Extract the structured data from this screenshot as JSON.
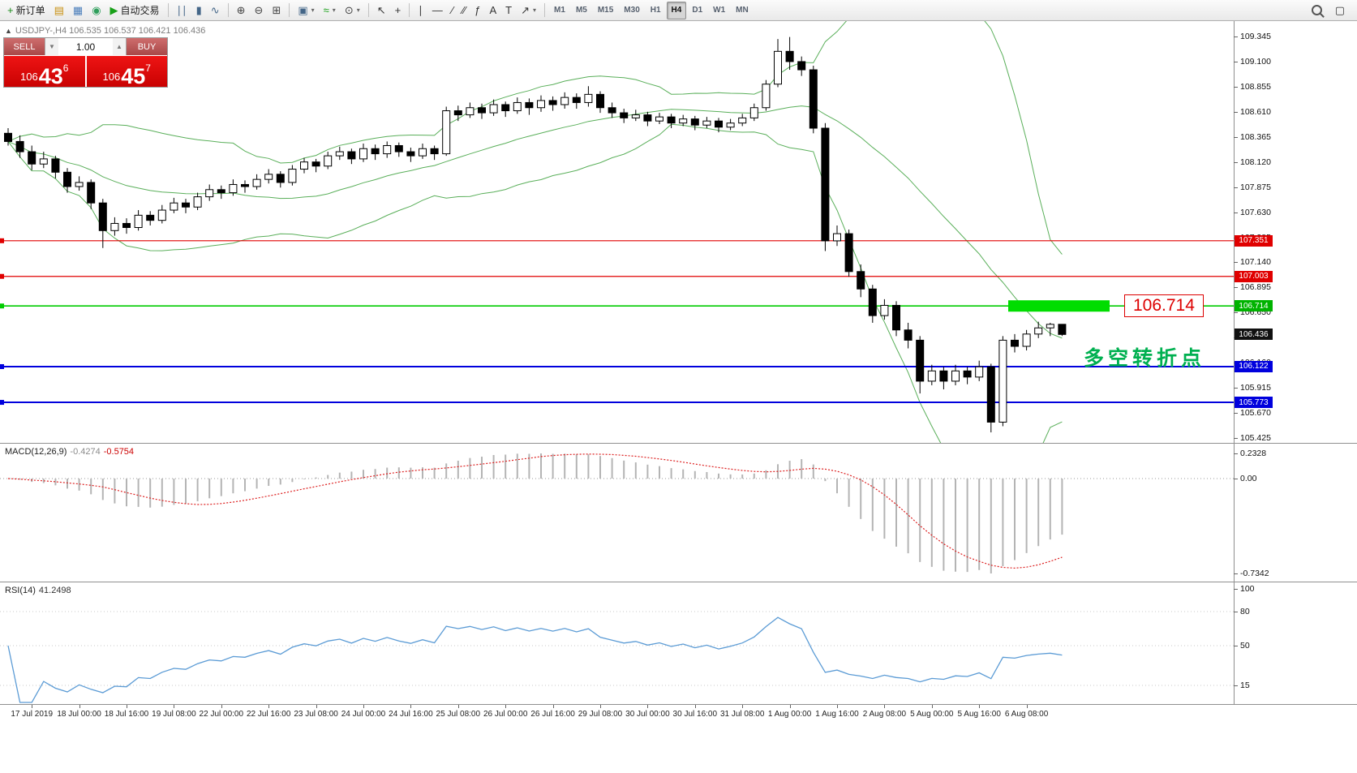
{
  "toolbar": {
    "groups": [
      {
        "items": [
          {
            "name": "new-order",
            "glyph": "+",
            "glyph_color": "#1a8a1a",
            "label": "新订单"
          },
          {
            "name": "profiles",
            "glyph": "▤",
            "glyph_color": "#c89010"
          },
          {
            "name": "market-watch",
            "glyph": "▦",
            "glyph_color": "#4a7ebb"
          },
          {
            "name": "navigator",
            "glyph": "◉",
            "glyph_color": "#2e9e5b"
          },
          {
            "name": "autotrading",
            "glyph": "▶",
            "glyph_color": "#18a018",
            "label": "自动交易"
          }
        ]
      },
      {
        "items": [
          {
            "name": "bar-chart",
            "glyph": "∣∣",
            "glyph_color": "#446688"
          },
          {
            "name": "candlestick-chart",
            "glyph": "▮",
            "glyph_color": "#446688"
          },
          {
            "name": "line-chart",
            "glyph": "∿",
            "glyph_color": "#446688"
          }
        ]
      },
      {
        "items": [
          {
            "name": "zoom-in",
            "glyph": "⊕",
            "glyph_color": "#444444"
          },
          {
            "name": "zoom-out",
            "glyph": "⊖",
            "glyph_color": "#444444"
          },
          {
            "name": "tile-windows",
            "glyph": "⊞",
            "glyph_color": "#444444"
          }
        ]
      },
      {
        "items": [
          {
            "name": "templates",
            "glyph": "▣",
            "glyph_color": "#446688",
            "caret": true
          },
          {
            "name": "indicators",
            "glyph": "≈",
            "glyph_color": "#18a018",
            "caret": true
          },
          {
            "name": "periods",
            "glyph": "⊙",
            "glyph_color": "#444444",
            "caret": true
          }
        ]
      },
      {
        "items": [
          {
            "name": "cursor",
            "glyph": "↖",
            "glyph_color": "#333333"
          },
          {
            "name": "crosshair",
            "glyph": "+",
            "glyph_color": "#333333"
          }
        ]
      },
      {
        "items": [
          {
            "name": "vertical-line",
            "glyph": "∣",
            "glyph_color": "#333333"
          },
          {
            "name": "horizontal-line",
            "glyph": "—",
            "glyph_color": "#333333"
          },
          {
            "name": "trendline",
            "glyph": "∕",
            "glyph_color": "#333333"
          },
          {
            "name": "equidistant-channel",
            "glyph": "∕∕",
            "glyph_color": "#333333"
          },
          {
            "name": "fibonacci",
            "glyph": "ƒ",
            "glyph_color": "#333333"
          },
          {
            "name": "text",
            "glyph": "A",
            "glyph_color": "#333333"
          },
          {
            "name": "text-label",
            "glyph": "T",
            "glyph_color": "#333333"
          },
          {
            "name": "arrows",
            "glyph": "↗",
            "glyph_color": "#333333",
            "caret": true
          }
        ]
      }
    ],
    "timeframes": [
      "M1",
      "M5",
      "M15",
      "M30",
      "H1",
      "H4",
      "D1",
      "W1",
      "MN"
    ],
    "active_timeframe": "H4",
    "right_items": [
      {
        "name": "search",
        "glyph": "css-magnifier"
      },
      {
        "name": "window-layout",
        "glyph": "▢"
      }
    ]
  },
  "chart_header": {
    "collapse_icon": "▲",
    "text": "USDJPY-,H4 106.535 106.537 106.421 106.436"
  },
  "one_click": {
    "sell_label": "SELL",
    "buy_label": "BUY",
    "volume": "1.00",
    "dec_icon": "▼",
    "inc_icon": "▲",
    "sell_price": {
      "prefix": "106",
      "big": "43",
      "sup": "6"
    },
    "buy_price": {
      "prefix": "106",
      "big": "45",
      "sup": "7"
    }
  },
  "main_overlay": {
    "level_label": "106.714",
    "turning_point_label": "多空转折点"
  },
  "price_axis": {
    "ticks": [
      "109.345",
      "109.100",
      "108.855",
      "108.610",
      "108.365",
      "108.120",
      "107.875",
      "107.630",
      "107.385",
      "107.140",
      "106.895",
      "106.650",
      "106.405",
      "106.160",
      "105.915",
      "105.670",
      "105.425"
    ],
    "tags": [
      {
        "text": "107.351",
        "price": 107.351,
        "bg": "#e00000"
      },
      {
        "text": "107.003",
        "price": 107.003,
        "bg": "#e00000"
      },
      {
        "text": "106.714",
        "price": 106.714,
        "bg": "#00b300"
      },
      {
        "text": "106.436",
        "price": 106.436,
        "bg": "#111111"
      },
      {
        "text": "106.122",
        "price": 106.122,
        "bg": "#0000dd"
      },
      {
        "text": "105.773",
        "price": 105.773,
        "bg": "#0000dd"
      }
    ]
  },
  "macd_panel": {
    "name": "MACD(12,26,9)",
    "main_value": "-0.4274",
    "signal_value": "-0.5754",
    "axis_labels": [
      "0.2328",
      "0.00",
      "-0.7342"
    ]
  },
  "rsi_panel": {
    "name": "RSI(14)",
    "value": "41.2498",
    "axis_labels": [
      "100",
      "80",
      "50",
      "15"
    ],
    "levels": [
      80,
      50,
      15
    ]
  },
  "time_axis": [
    "17 Jul 2019",
    "18 Jul 00:00",
    "18 Jul 16:00",
    "19 Jul 08:00",
    "22 Jul 00:00",
    "22 Jul 16:00",
    "23 Jul 08:00",
    "24 Jul 00:00",
    "24 Jul 16:00",
    "25 Jul 08:00",
    "26 Jul 00:00",
    "26 Jul 16:00",
    "29 Jul 08:00",
    "30 Jul 00:00",
    "30 Jul 16:00",
    "31 Jul 08:00",
    "1 Aug 00:00",
    "1 Aug 16:00",
    "2 Aug 08:00",
    "5 Aug 00:00",
    "5 Aug 16:00",
    "6 Aug 08:00"
  ],
  "chart_data": {
    "type": "candlestick",
    "symbol": "USDJPY-",
    "timeframe": "H4",
    "ohlc_display": {
      "open": "106.535",
      "high": "106.537",
      "low": "106.421",
      "close": "106.436"
    },
    "y_axis": {
      "min": 105.425,
      "max": 109.345,
      "tick_step": 0.245
    },
    "hlines": [
      {
        "price": 107.351,
        "color": "#e00000",
        "width": 1.2
      },
      {
        "price": 107.003,
        "color": "#e00000",
        "width": 1.2
      },
      {
        "price": 106.714,
        "color": "#00cc00",
        "width": 1.6
      },
      {
        "price": 106.122,
        "color": "#0000dd",
        "width": 2
      },
      {
        "price": 105.773,
        "color": "#0000dd",
        "width": 2
      }
    ],
    "highlight_bar": {
      "price": 106.714,
      "color": "#00dd00"
    },
    "indicators": {
      "bollinger": {
        "period": 20,
        "deviation": 2,
        "color": "#5aaf5a"
      },
      "macd": {
        "fast": 12,
        "slow": 26,
        "signal": 9,
        "values_shown": [
          "-0.4274",
          "-0.5754"
        ],
        "range_shown": [
          0.2328,
          -0.7342
        ]
      },
      "rsi": {
        "period": 14,
        "value_shown": 41.2498
      }
    },
    "candles": [
      [
        108.4,
        108.45,
        108.28,
        108.32
      ],
      [
        108.32,
        108.38,
        108.16,
        108.22
      ],
      [
        108.22,
        108.28,
        108.04,
        108.1
      ],
      [
        108.1,
        108.22,
        108.06,
        108.15
      ],
      [
        108.15,
        108.18,
        107.96,
        108.02
      ],
      [
        108.02,
        108.06,
        107.82,
        107.88
      ],
      [
        107.88,
        107.98,
        107.84,
        107.92
      ],
      [
        107.92,
        107.95,
        107.66,
        107.72
      ],
      [
        107.72,
        107.76,
        107.28,
        107.45
      ],
      [
        107.45,
        107.58,
        107.4,
        107.52
      ],
      [
        107.52,
        107.57,
        107.42,
        107.48
      ],
      [
        107.48,
        107.65,
        107.45,
        107.6
      ],
      [
        107.6,
        107.64,
        107.5,
        107.55
      ],
      [
        107.55,
        107.7,
        107.52,
        107.65
      ],
      [
        107.65,
        107.77,
        107.62,
        107.72
      ],
      [
        107.72,
        107.76,
        107.62,
        107.68
      ],
      [
        107.68,
        107.82,
        107.65,
        107.78
      ],
      [
        107.78,
        107.9,
        107.74,
        107.85
      ],
      [
        107.85,
        107.89,
        107.76,
        107.82
      ],
      [
        107.82,
        107.95,
        107.79,
        107.9
      ],
      [
        107.9,
        107.94,
        107.82,
        107.88
      ],
      [
        107.88,
        108.0,
        107.85,
        107.95
      ],
      [
        107.95,
        108.05,
        107.91,
        108.0
      ],
      [
        108.0,
        108.03,
        107.87,
        107.92
      ],
      [
        107.92,
        108.09,
        107.89,
        108.05
      ],
      [
        108.05,
        108.16,
        108.01,
        108.12
      ],
      [
        108.12,
        108.15,
        108.02,
        108.08
      ],
      [
        108.08,
        108.22,
        108.05,
        108.18
      ],
      [
        108.18,
        108.27,
        108.14,
        108.22
      ],
      [
        108.22,
        108.25,
        108.1,
        108.15
      ],
      [
        108.15,
        108.3,
        108.12,
        108.25
      ],
      [
        108.25,
        108.29,
        108.14,
        108.2
      ],
      [
        108.2,
        108.32,
        108.16,
        108.28
      ],
      [
        108.28,
        108.31,
        108.17,
        108.22
      ],
      [
        108.22,
        108.26,
        108.12,
        108.18
      ],
      [
        108.18,
        108.3,
        108.15,
        108.25
      ],
      [
        108.25,
        108.28,
        108.14,
        108.2
      ],
      [
        108.2,
        108.66,
        108.18,
        108.62
      ],
      [
        108.62,
        108.67,
        108.52,
        108.58
      ],
      [
        108.58,
        108.7,
        108.55,
        108.65
      ],
      [
        108.65,
        108.69,
        108.54,
        108.6
      ],
      [
        108.6,
        108.73,
        108.57,
        108.68
      ],
      [
        108.68,
        108.71,
        108.56,
        108.62
      ],
      [
        108.62,
        108.75,
        108.59,
        108.7
      ],
      [
        108.7,
        108.74,
        108.58,
        108.65
      ],
      [
        108.65,
        108.77,
        108.61,
        108.72
      ],
      [
        108.72,
        108.76,
        108.62,
        108.68
      ],
      [
        108.68,
        108.8,
        108.64,
        108.75
      ],
      [
        108.75,
        108.79,
        108.64,
        108.7
      ],
      [
        108.7,
        108.86,
        108.66,
        108.78
      ],
      [
        108.78,
        108.81,
        108.6,
        108.65
      ],
      [
        108.65,
        108.7,
        108.55,
        108.6
      ],
      [
        108.6,
        108.64,
        108.5,
        108.55
      ],
      [
        108.55,
        108.63,
        108.52,
        108.58
      ],
      [
        108.58,
        108.61,
        108.47,
        108.52
      ],
      [
        108.52,
        108.6,
        108.49,
        108.56
      ],
      [
        108.56,
        108.59,
        108.45,
        108.5
      ],
      [
        108.5,
        108.58,
        108.47,
        108.54
      ],
      [
        108.54,
        108.57,
        108.43,
        108.48
      ],
      [
        108.48,
        108.56,
        108.45,
        108.52
      ],
      [
        108.52,
        108.55,
        108.41,
        108.46
      ],
      [
        108.46,
        108.54,
        108.43,
        108.5
      ],
      [
        108.5,
        108.59,
        108.47,
        108.55
      ],
      [
        108.55,
        108.69,
        108.52,
        108.65
      ],
      [
        108.65,
        108.92,
        108.62,
        108.88
      ],
      [
        108.88,
        109.32,
        108.85,
        109.2
      ],
      [
        109.2,
        109.34,
        109.02,
        109.1
      ],
      [
        109.1,
        109.15,
        108.96,
        109.02
      ],
      [
        109.02,
        109.06,
        108.4,
        108.45
      ],
      [
        108.45,
        108.5,
        107.25,
        107.35
      ],
      [
        107.35,
        107.5,
        107.3,
        107.42
      ],
      [
        107.42,
        107.46,
        107.0,
        107.05
      ],
      [
        107.05,
        107.12,
        106.8,
        106.88
      ],
      [
        106.88,
        106.92,
        106.55,
        106.62
      ],
      [
        106.62,
        106.78,
        106.58,
        106.72
      ],
      [
        106.72,
        106.76,
        106.42,
        106.48
      ],
      [
        106.48,
        106.55,
        106.3,
        106.38
      ],
      [
        106.38,
        106.42,
        105.86,
        105.98
      ],
      [
        105.98,
        106.14,
        105.94,
        106.08
      ],
      [
        106.08,
        106.12,
        105.9,
        105.98
      ],
      [
        105.98,
        106.14,
        105.94,
        106.08
      ],
      [
        106.08,
        106.12,
        105.95,
        106.02
      ],
      [
        106.02,
        106.18,
        105.98,
        106.12
      ],
      [
        106.12,
        106.15,
        105.48,
        105.58
      ],
      [
        105.58,
        106.42,
        105.54,
        106.38
      ],
      [
        106.38,
        106.44,
        106.26,
        106.32
      ],
      [
        106.32,
        106.48,
        106.28,
        106.44
      ],
      [
        106.44,
        106.56,
        106.4,
        106.5
      ],
      [
        106.5,
        106.55,
        106.42,
        106.535
      ],
      [
        106.535,
        106.537,
        106.421,
        106.436
      ]
    ]
  }
}
